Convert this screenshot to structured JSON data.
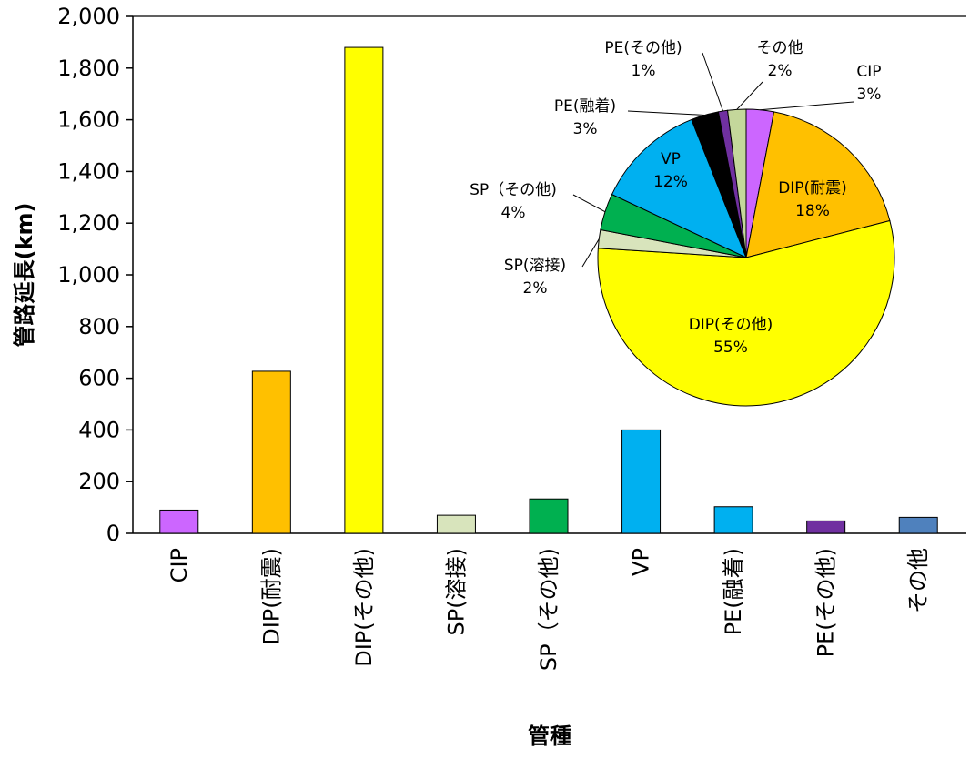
{
  "chart_data": [
    {
      "type": "bar",
      "xlabel": "管種",
      "ylabel": "管路延長(km)",
      "ylim": [
        0,
        2000
      ],
      "yticks": [
        "0",
        "200",
        "400",
        "600",
        "800",
        "1,000",
        "1,200",
        "1,400",
        "1,600",
        "1,800",
        "2,000"
      ],
      "categories": [
        "CIP",
        "DIP(耐震)",
        "DIP(その他)",
        "SP(溶接)",
        "SP（その他)",
        "VP",
        "PE(融着)",
        "PE(その他)",
        "その他"
      ],
      "values": [
        90,
        627,
        1880,
        70,
        133,
        400,
        103,
        48,
        62
      ],
      "colors": [
        "#CC66FF",
        "#FFC000",
        "#FFFF00",
        "#D8E4BC",
        "#00B050",
        "#00B0F0",
        "#00B0F0",
        "#7030A0",
        "#4F81BD"
      ],
      "grid": false
    },
    {
      "type": "pie",
      "slices": [
        {
          "label": "CIP",
          "percent_label": "3%",
          "value": 3,
          "color": "#CC66FF"
        },
        {
          "label": "DIP(耐震)",
          "percent_label": "18%",
          "value": 18,
          "color": "#FFC000"
        },
        {
          "label": "DIP(その他)",
          "percent_label": "55%",
          "value": 55,
          "color": "#FFFF00"
        },
        {
          "label": "SP(溶接)",
          "percent_label": "2%",
          "value": 2,
          "color": "#D8E4BC"
        },
        {
          "label": "SP（その他)",
          "percent_label": "4%",
          "value": 4,
          "color": "#00B050"
        },
        {
          "label": "VP",
          "percent_label": "12%",
          "value": 12,
          "color": "#00B0F0"
        },
        {
          "label": "PE(融着)",
          "percent_label": "3%",
          "value": 3,
          "color": "#000000"
        },
        {
          "label": "PE(その他)",
          "percent_label": "1%",
          "value": 1,
          "color": "#7030A0"
        },
        {
          "label": "その他",
          "percent_label": "2%",
          "value": 2,
          "color": "#C4D79B"
        }
      ]
    }
  ]
}
